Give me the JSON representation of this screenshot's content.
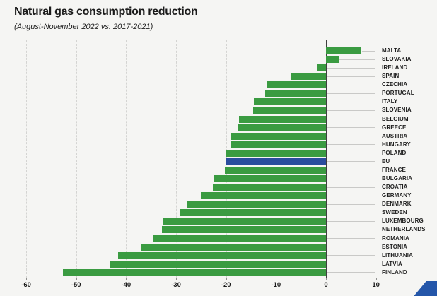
{
  "header": {
    "title": "Natural gas consumption reduction",
    "subtitle": "(August-November 2022 vs. 2017-2021)"
  },
  "chart_data": {
    "type": "bar",
    "orientation": "horizontal",
    "title": "Natural gas consumption reduction",
    "subtitle": "(August-November 2022 vs. 2017-2021)",
    "value_unit": "percent_change",
    "categories": [
      "MALTA",
      "SLOVAKIA",
      "IRELAND",
      "SPAIN",
      "CZECHIA",
      "PORTUGAL",
      "ITALY",
      "SLOVENIA",
      "BELGIUM",
      "GREECE",
      "AUSTRIA",
      "HUNGARY",
      "POLAND",
      "EU",
      "FRANCE",
      "BULGARIA",
      "CROATIA",
      "GERMANY",
      "DENMARK",
      "SWEDEN",
      "LUXEMBOURG",
      "NETHERLANDS",
      "ROMANIA",
      "ESTONIA",
      "LITHUANIA",
      "LATVIA",
      "FINLAND"
    ],
    "values": [
      7.1,
      2.6,
      -1.9,
      -6.9,
      -11.8,
      -12.2,
      -14.4,
      -14.6,
      -17.4,
      -17.5,
      -18.9,
      -19.0,
      -20.0,
      -20.1,
      -20.2,
      -22.3,
      -22.7,
      -25.0,
      -27.7,
      -29.1,
      -32.7,
      -32.9,
      -34.5,
      -37.1,
      -41.6,
      -43.1,
      -52.7
    ],
    "highlight": {
      "category": "EU",
      "color": "#2a4d9e"
    },
    "bar_color": "#3a9b41",
    "x_ticks": [
      -60,
      -50,
      -40,
      -30,
      -20,
      -10,
      0,
      10
    ],
    "xlim": [
      -60,
      10
    ],
    "grid": "vertical-dashed",
    "zero_line": true,
    "legend": "none"
  },
  "branding": {
    "logo_corner_color": "#2456a9"
  }
}
